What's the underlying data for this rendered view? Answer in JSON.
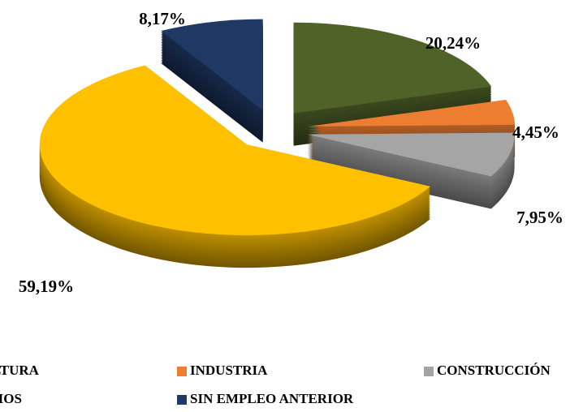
{
  "chart_data": {
    "type": "pie",
    "categories": [
      "AGRICULTURA",
      "INDUSTRIA",
      "CONSTRUCCIÓN",
      "SERVICIOS",
      "SIN EMPLEO ANTERIOR"
    ],
    "values": [
      20.24,
      4.45,
      7.95,
      59.19,
      8.17
    ],
    "value_labels": [
      "20,24%",
      "4,45%",
      "7,95%",
      "59,19%",
      "8,17%"
    ],
    "colors": [
      "#4f6228",
      "#ed7d31",
      "#a5a5a5",
      "#ffc000",
      "#1f3864"
    ],
    "legend": "bottom"
  }
}
